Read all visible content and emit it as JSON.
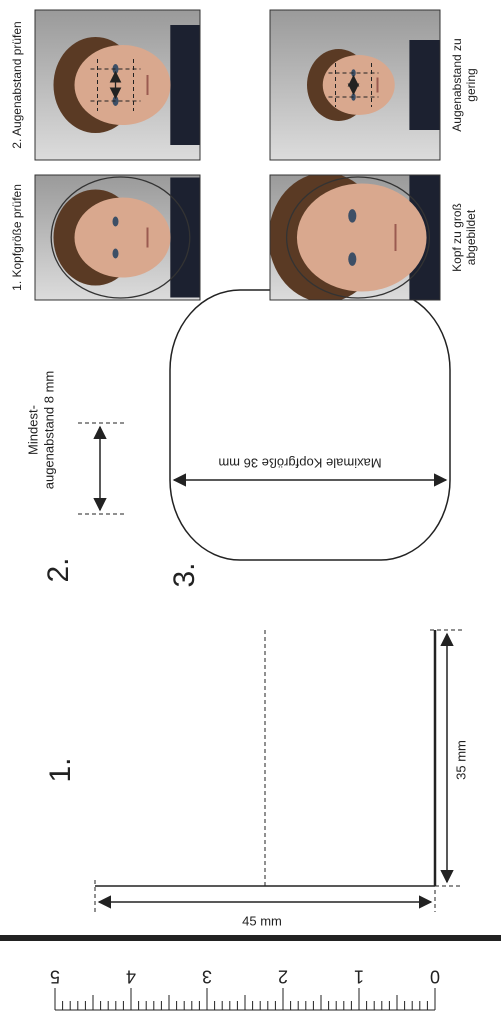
{
  "steps": {
    "one": "1.",
    "two": "2.",
    "three": "3."
  },
  "eye_distance_label": [
    "Mindest-",
    "augenabstand 8 mm"
  ],
  "head_size_label": "Maximale Kopfgröße 36 mm",
  "width_label": "35 mm",
  "height_label": "45 mm",
  "ruler_labels": [
    "0",
    "1",
    "2",
    "3",
    "4",
    "5"
  ],
  "photos": [
    {
      "caption": [
        "2. Augenabstand prüfen"
      ]
    },
    {
      "caption": [
        "1. Kopfgröße prüfen"
      ]
    },
    {
      "caption": [
        "Augenabstand zu",
        "gering"
      ]
    },
    {
      "caption": [
        "Kopf zu groß",
        "abgebildet"
      ]
    }
  ]
}
